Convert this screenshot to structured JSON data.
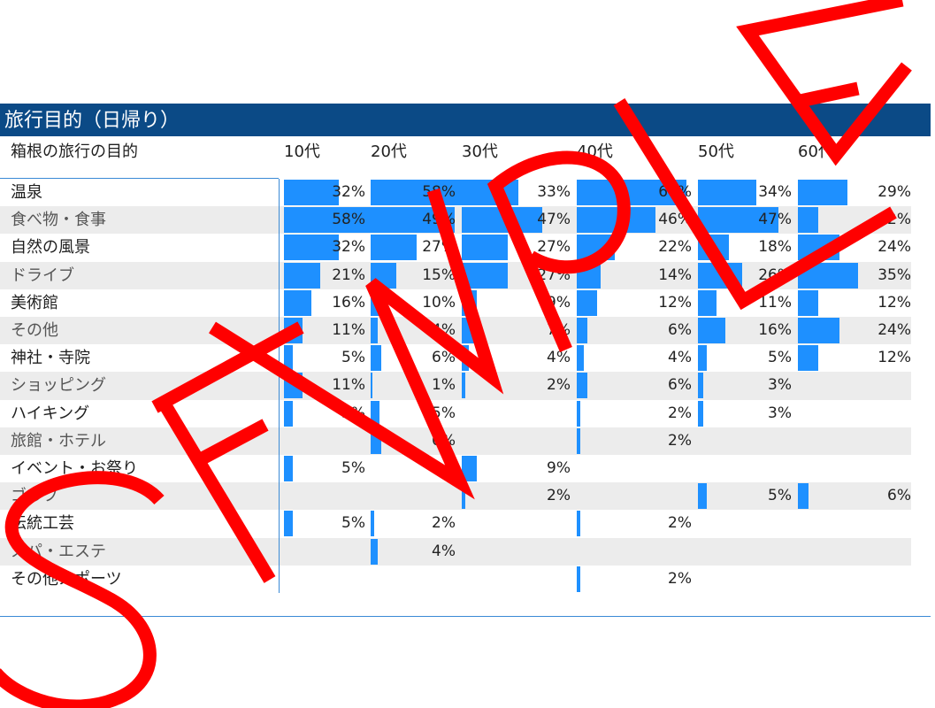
{
  "chart_data": {
    "type": "bar",
    "title": "旅行目的（日帰り）",
    "row_header": "箱根の旅行の目的",
    "columns": [
      "10代",
      "20代",
      "30代",
      "40代",
      "50代",
      "60代~"
    ],
    "rows": [
      {
        "label": "温泉",
        "values": [
          32,
          58,
          33,
          64,
          34,
          29
        ]
      },
      {
        "label": "食べ物・食事",
        "values": [
          58,
          49,
          47,
          46,
          47,
          12
        ]
      },
      {
        "label": "自然の風景",
        "values": [
          32,
          27,
          27,
          22,
          18,
          24
        ]
      },
      {
        "label": "ドライブ",
        "values": [
          21,
          15,
          27,
          14,
          26,
          35
        ]
      },
      {
        "label": "美術館",
        "values": [
          16,
          10,
          9,
          12,
          11,
          12
        ]
      },
      {
        "label": "その他",
        "values": [
          11,
          4,
          7,
          6,
          16,
          24
        ]
      },
      {
        "label": "神社・寺院",
        "values": [
          5,
          6,
          4,
          4,
          5,
          12
        ]
      },
      {
        "label": "ショッピング",
        "values": [
          11,
          1,
          2,
          6,
          3,
          null
        ]
      },
      {
        "label": "ハイキング",
        "values": [
          5,
          5,
          null,
          2,
          3,
          null
        ]
      },
      {
        "label": "旅館・ホテル",
        "values": [
          null,
          6,
          null,
          2,
          null,
          null
        ]
      },
      {
        "label": "イベント・お祭り",
        "values": [
          5,
          null,
          9,
          null,
          null,
          null
        ]
      },
      {
        "label": "ゴルフ",
        "values": [
          null,
          null,
          2,
          null,
          5,
          6
        ]
      },
      {
        "label": "伝統工芸",
        "values": [
          5,
          2,
          null,
          2,
          null,
          null
        ]
      },
      {
        "label": "スパ・エステ",
        "values": [
          null,
          4,
          null,
          null,
          null,
          null
        ]
      },
      {
        "label": "その他スポーツ",
        "values": [
          null,
          null,
          null,
          2,
          null,
          null
        ]
      }
    ],
    "unit": "%",
    "bar_color": "#1e90ff",
    "header_color": "#0b4a86"
  },
  "watermark": {
    "text": "SAMPLE",
    "color": "#ff0000"
  }
}
